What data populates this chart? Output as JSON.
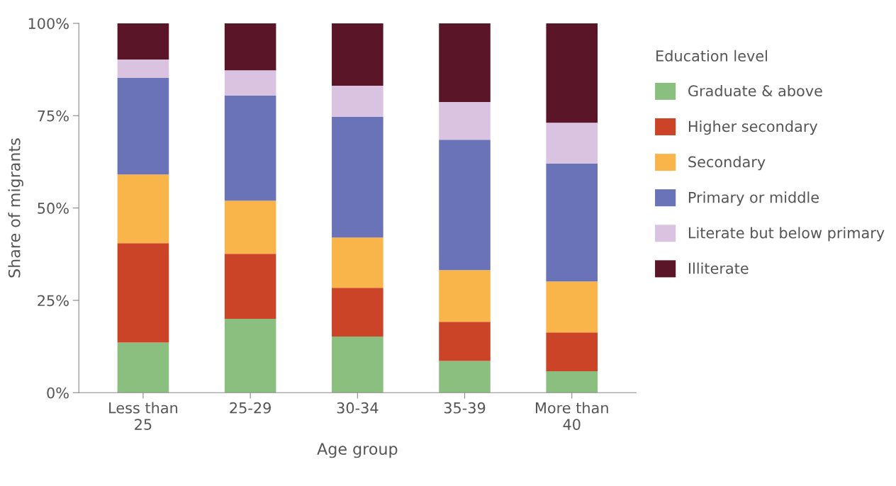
{
  "chart_data": {
    "type": "bar",
    "stacked": true,
    "xlabel": "Age group",
    "ylabel": "Share of migrants",
    "legend_title": "Education level",
    "legend": "right",
    "grid": false,
    "categories": [
      "Less than\n25",
      "25-29",
      "30-34",
      "35-39",
      "More than\n40"
    ],
    "ylim": [
      0,
      100
    ],
    "yticks": [
      {
        "value": 0,
        "label": "0%"
      },
      {
        "value": 25,
        "label": "25%"
      },
      {
        "value": 50,
        "label": "50%"
      },
      {
        "value": 75,
        "label": "75%"
      },
      {
        "value": 100,
        "label": "100%"
      }
    ],
    "series": [
      {
        "name": "Graduate & above",
        "color": "#8bbf80",
        "values": [
          13.6,
          20.0,
          15.2,
          8.6,
          5.8
        ]
      },
      {
        "name": "Higher secondary",
        "color": "#cc4427",
        "values": [
          26.9,
          17.6,
          13.2,
          10.6,
          10.5
        ]
      },
      {
        "name": "Secondary",
        "color": "#f9b44a",
        "values": [
          18.6,
          14.4,
          13.6,
          14.0,
          13.8
        ]
      },
      {
        "name": "Primary or middle",
        "color": "#6a72b8",
        "values": [
          26.1,
          28.4,
          32.7,
          35.3,
          31.9
        ]
      },
      {
        "name": "Literate but below primary",
        "color": "#d9c3e0",
        "values": [
          5.0,
          6.9,
          8.4,
          10.2,
          11.1
        ]
      },
      {
        "name": "Illiterate",
        "color": "#5a1628",
        "values": [
          9.8,
          12.7,
          16.9,
          21.3,
          26.9
        ]
      }
    ]
  }
}
